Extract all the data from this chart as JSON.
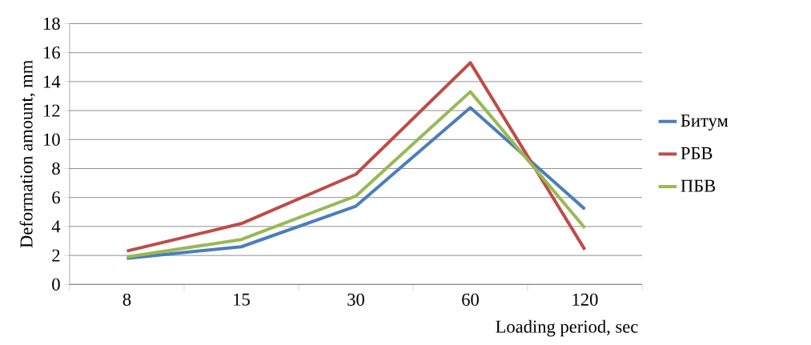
{
  "chart_data": {
    "type": "line",
    "xlabel": "Loading period, sec",
    "ylabel": "Deformation amount, mm",
    "categories": [
      "8",
      "15",
      "30",
      "60",
      "120"
    ],
    "series": [
      {
        "name": "Битум",
        "color": "#4a7ebb",
        "values": [
          1.8,
          2.6,
          5.4,
          12.2,
          5.2
        ]
      },
      {
        "name": "РБВ",
        "color": "#be4b48",
        "values": [
          2.3,
          4.2,
          7.6,
          15.3,
          2.4
        ]
      },
      {
        "name": "ПБВ",
        "color": "#98b954",
        "values": [
          1.9,
          3.1,
          6.1,
          13.3,
          3.9
        ]
      }
    ],
    "ylim": [
      0,
      18
    ],
    "yticks": [
      0,
      2,
      4,
      6,
      8,
      10,
      12,
      14,
      16,
      18
    ],
    "grid": "y",
    "legend": "right",
    "marker": "none",
    "line_style": "solid"
  }
}
